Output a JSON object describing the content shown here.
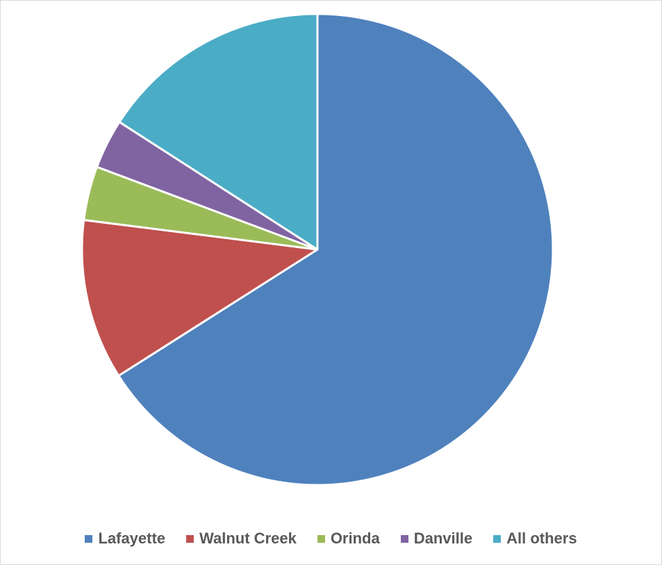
{
  "chart_data": {
    "type": "pie",
    "title": "",
    "categories": [
      "Lafayette",
      "Walnut Creek",
      "Orinda",
      "Danville",
      "All others"
    ],
    "values": [
      66.0,
      11.0,
      3.7,
      3.4,
      15.9
    ],
    "unit": "%",
    "colors": [
      "#4F81BD",
      "#C0504D",
      "#9BBB59",
      "#8064A2",
      "#4BACC6"
    ],
    "start_angle": "12 o'clock",
    "direction": "clockwise",
    "legend_position": "bottom"
  },
  "legend": [
    {
      "label": "Lafayette",
      "color": "#4F81BD"
    },
    {
      "label": "Walnut Creek",
      "color": "#C0504D"
    },
    {
      "label": "Orinda",
      "color": "#9BBB59"
    },
    {
      "label": "Danville",
      "color": "#8064A2"
    },
    {
      "label": "All others",
      "color": "#4BACC6"
    }
  ]
}
